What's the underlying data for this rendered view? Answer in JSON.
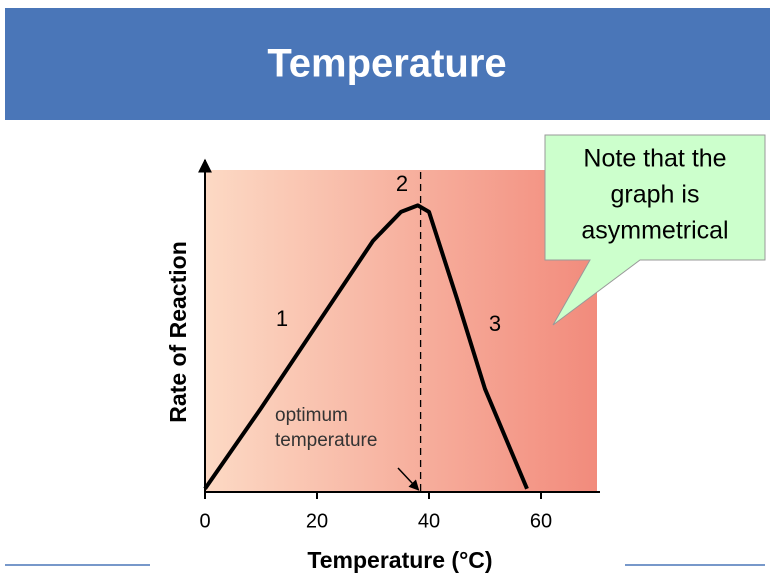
{
  "header": {
    "title": "Temperature"
  },
  "callout": [
    "Note that the",
    "graph is",
    "asymmetrical"
  ],
  "chart_data": {
    "type": "line",
    "x_label": "Temperature (°C)",
    "y_label": "Rate of Reaction",
    "x": [
      0,
      10,
      20,
      30,
      35,
      38,
      40,
      45,
      50,
      57.5
    ],
    "values": [
      1,
      26,
      52,
      78,
      87,
      89,
      87,
      60,
      32,
      1
    ],
    "color": "#000000",
    "xlim": [
      0,
      70
    ],
    "xticks": [
      0,
      20,
      40,
      60
    ],
    "ylim": [
      0,
      100
    ],
    "optimum_x": 38.5,
    "annotations": [
      "1",
      "2",
      "3",
      "optimum",
      "temperature"
    ]
  }
}
